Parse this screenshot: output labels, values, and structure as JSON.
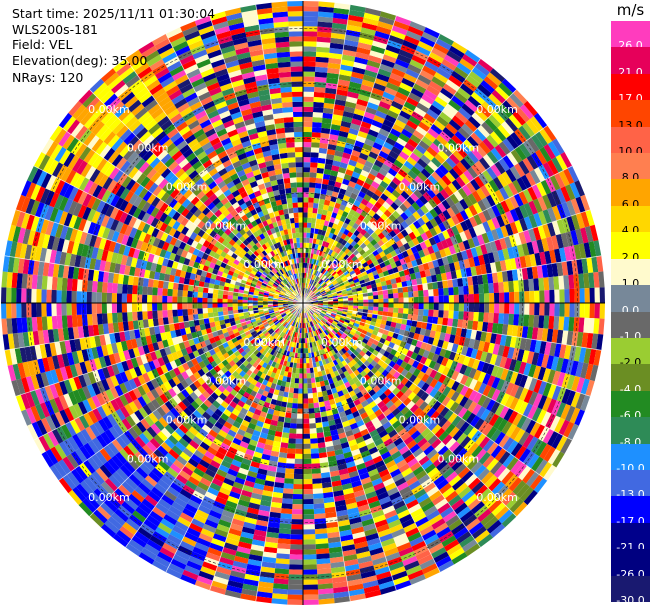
{
  "header": {
    "start_time": "Start time: 2025/11/11 01:30:04",
    "station": "WLS200s-181",
    "field": "Field: VEL",
    "elevation": "Elevation(deg): 35.00",
    "nrays": "NRays: 120"
  },
  "colorbar": {
    "unit": "m/s",
    "levels": [
      {
        "label": "26.0",
        "color": "#ff3cbe"
      },
      {
        "label": "21.0",
        "color": "#e6005a"
      },
      {
        "label": "17.0",
        "color": "#ff0000"
      },
      {
        "label": "13.0",
        "color": "#ff4500"
      },
      {
        "label": "10.0",
        "color": "#ff6347"
      },
      {
        "label": "8.0",
        "color": "#ff7f50"
      },
      {
        "label": "6.0",
        "color": "#ffa500"
      },
      {
        "label": "4.0",
        "color": "#ffd700"
      },
      {
        "label": "2.0",
        "color": "#ffff00"
      },
      {
        "label": "1.0",
        "color": "#fffacd"
      },
      {
        "label": "0.0",
        "color": "#778899"
      },
      {
        "label": "-1.0",
        "color": "#696969"
      },
      {
        "label": "-2.0",
        "color": "#9acd32"
      },
      {
        "label": "-4.0",
        "color": "#6b8e23"
      },
      {
        "label": "-6.0",
        "color": "#228b22"
      },
      {
        "label": "-8.0",
        "color": "#2e8b57"
      },
      {
        "label": "-10.0",
        "color": "#1e90ff"
      },
      {
        "label": "-13.0",
        "color": "#4169e1"
      },
      {
        "label": "-17.0",
        "color": "#0000ff"
      },
      {
        "label": "-21.0",
        "color": "#00008b"
      },
      {
        "label": "-26.0",
        "color": "#000080"
      },
      {
        "label": "-30.0",
        "color": "#191970"
      }
    ]
  },
  "chart_data": {
    "type": "heatmap",
    "projection": "polar-ppi",
    "field": "VEL",
    "elevation_deg": 35.0,
    "n_rays": 120,
    "range_ring_labels": [
      "0.00km",
      "0.00km",
      "0.00km",
      "0.00km",
      "0.00km"
    ],
    "range_ring_count": 5,
    "crosshair": true,
    "value_range": [
      -30.0,
      30.0
    ]
  }
}
